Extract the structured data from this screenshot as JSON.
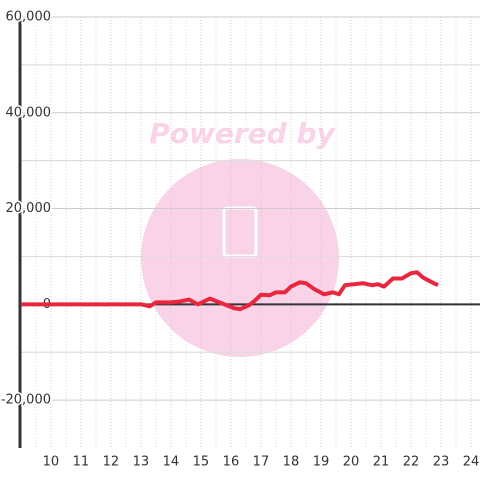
{
  "chart_data": {
    "type": "line",
    "watermark": "Powered by",
    "x": [
      9,
      13,
      13.3,
      13.5,
      14,
      14.3,
      14.6,
      14.9,
      15.3,
      15.7,
      16.1,
      16.3,
      16.6,
      16.8,
      17,
      17.3,
      17.5,
      17.8,
      18,
      18.3,
      18.5,
      18.8,
      19.1,
      19.4,
      19.6,
      19.8,
      20.1,
      20.4,
      20.7,
      20.9,
      21.1,
      21.4,
      21.7,
      22,
      22.2,
      22.4,
      22.7,
      22.9
    ],
    "series": [
      {
        "color": "#e8273f",
        "values": [
          0,
          0,
          -400,
          400,
          400,
          600,
          1000,
          0,
          1200,
          200,
          -800,
          -1000,
          -200,
          800,
          2000,
          1900,
          2500,
          2500,
          3700,
          4600,
          4400,
          3100,
          2100,
          2500,
          2100,
          4000,
          4200,
          4400,
          4000,
          4200,
          3700,
          5400,
          5400,
          6500,
          6700,
          5600,
          4600,
          4000
        ]
      }
    ],
    "xlim": [
      8.97,
      24.3
    ],
    "xticks": [
      10,
      11,
      12,
      13,
      14,
      15,
      16,
      17,
      18,
      19,
      20,
      21,
      22,
      23,
      24
    ],
    "ylim": [
      -30000,
      60000
    ],
    "yticks": [
      {
        "value": -20000,
        "label": "-20,000"
      },
      0,
      {
        "value": 20000,
        "label": "20,000"
      },
      {
        "value": 40000,
        "label": "40,000"
      },
      {
        "value": 60000,
        "label": "60,000"
      }
    ],
    "grid": true
  }
}
